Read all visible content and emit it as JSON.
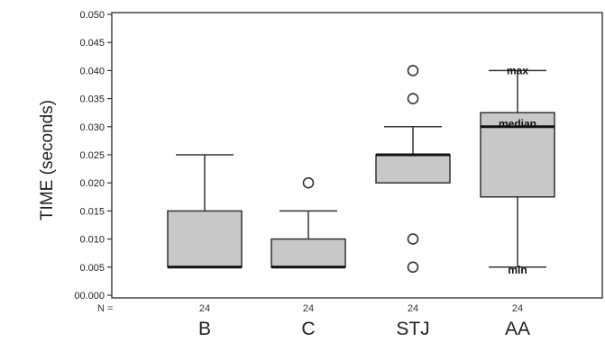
{
  "chart_data": {
    "type": "boxplot",
    "title": "",
    "xlabel": "",
    "ylabel": "TIME (seconds)",
    "ylim": [
      0,
      0.05
    ],
    "yticks": [
      0.0,
      0.005,
      0.01,
      0.015,
      0.02,
      0.025,
      0.03,
      0.035,
      0.04,
      0.045,
      0.05
    ],
    "ytick_labels": [
      "00.000",
      "0.005",
      "0.010",
      "0.015",
      "0.020",
      "0.025",
      "0.030",
      "0.035",
      "0.040",
      "0.045",
      "0.050"
    ],
    "n_label": "N =",
    "grid": false,
    "colors": {
      "box_fill": "#c8c8c8",
      "stroke": "#333333"
    },
    "categories": [
      "B",
      "C",
      "STJ",
      "AA"
    ],
    "series": [
      {
        "category": "B",
        "n": "24",
        "min": 0.005,
        "q1": 0.005,
        "median": 0.005,
        "q3": 0.015,
        "max": 0.025,
        "outliers": []
      },
      {
        "category": "C",
        "n": "24",
        "min": 0.005,
        "q1": 0.005,
        "median": 0.005,
        "q3": 0.01,
        "max": 0.015,
        "outliers": [
          0.02
        ]
      },
      {
        "category": "STJ",
        "n": "24",
        "min": 0.02,
        "q1": 0.02,
        "median": 0.025,
        "q3": 0.025,
        "max": 0.03,
        "outliers": [
          0.005,
          0.01,
          0.035,
          0.04
        ]
      },
      {
        "category": "AA",
        "n": "24",
        "min": 0.005,
        "q1": 0.0175,
        "median": 0.03,
        "q3": 0.0325,
        "max": 0.04,
        "outliers": []
      }
    ],
    "annotations": [
      {
        "text": "max",
        "category": "AA",
        "y": 0.04
      },
      {
        "text": "median",
        "category": "AA",
        "y": 0.0305
      },
      {
        "text": "min",
        "category": "AA",
        "y": 0.0045
      }
    ]
  }
}
